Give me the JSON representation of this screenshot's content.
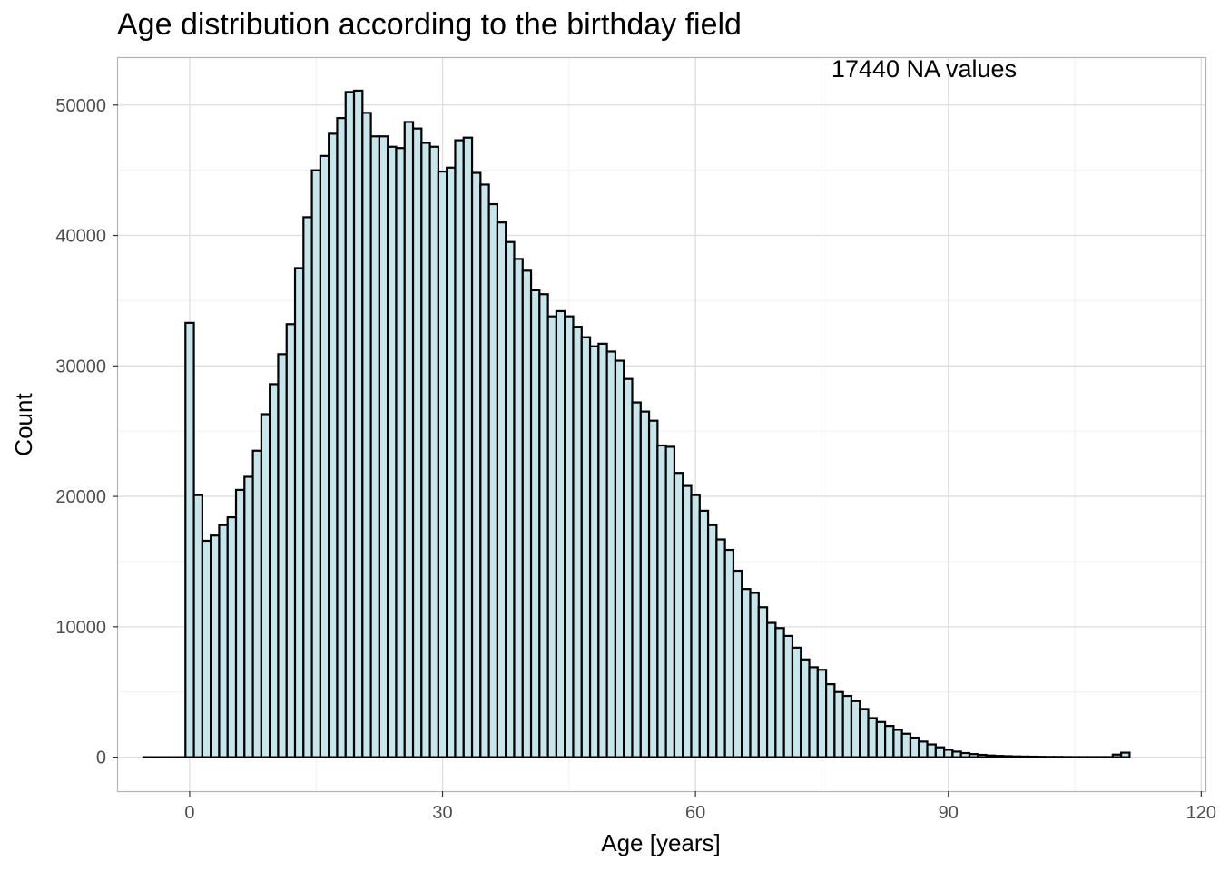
{
  "chart_data": {
    "type": "bar",
    "title": "Age distribution according to the birthday field",
    "xlabel": "Age [years]",
    "ylabel": "Count",
    "annotation": "17440 NA values",
    "xlim": [
      -8.5,
      120.5
    ],
    "ylim": [
      -2600,
      53600
    ],
    "x_ticks": [
      0,
      30,
      60,
      90,
      120
    ],
    "y_ticks": [
      0,
      10000,
      20000,
      30000,
      40000,
      50000
    ],
    "grid": true,
    "bin_width": 1,
    "bin_start": -5,
    "fill_color": "#c6e6eb",
    "stroke_color": "#000000",
    "values": [
      0,
      0,
      0,
      0,
      0,
      33300,
      20100,
      16600,
      17000,
      17800,
      18400,
      20500,
      21500,
      23500,
      26300,
      28600,
      30900,
      33200,
      37500,
      41400,
      45000,
      46100,
      47800,
      49000,
      51000,
      51100,
      49400,
      47600,
      47600,
      46800,
      46700,
      48700,
      48200,
      47100,
      46800,
      44900,
      45200,
      47300,
      47500,
      44800,
      43900,
      42400,
      41000,
      39500,
      38200,
      37300,
      35800,
      35500,
      33800,
      34200,
      33800,
      33000,
      32200,
      31500,
      31700,
      31100,
      30400,
      29000,
      27200,
      26500,
      25800,
      23900,
      23800,
      21800,
      20800,
      20100,
      18900,
      17800,
      16700,
      15900,
      14300,
      12900,
      12600,
      11500,
      10300,
      9900,
      9300,
      8400,
      7500,
      6900,
      6700,
      5600,
      5000,
      4700,
      4300,
      3700,
      3000,
      2700,
      2400,
      2100,
      1800,
      1500,
      1200,
      980,
      760,
      570,
      430,
      320,
      240,
      180,
      130,
      100,
      80,
      60,
      50,
      40,
      30,
      20,
      20,
      15,
      10,
      10,
      10,
      10,
      10,
      200,
      350
    ]
  }
}
